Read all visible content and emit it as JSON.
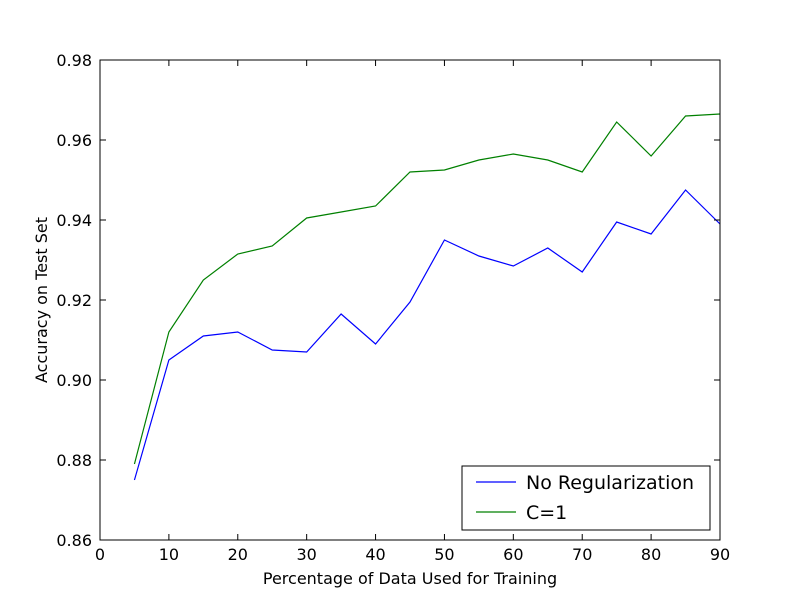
{
  "chart_data": {
    "type": "line",
    "xlabel": "Percentage of Data Used for Training",
    "ylabel": "Accuracy on Test Set",
    "xlim": [
      0,
      90
    ],
    "ylim": [
      0.86,
      0.98
    ],
    "xticks": [
      "0",
      "10",
      "20",
      "30",
      "40",
      "50",
      "60",
      "70",
      "80",
      "90"
    ],
    "yticks": [
      "0.86",
      "0.88",
      "0.90",
      "0.92",
      "0.94",
      "0.96",
      "0.98"
    ],
    "grid": false,
    "legend_position": "lower-right",
    "x": [
      5,
      10,
      15,
      20,
      25,
      30,
      35,
      40,
      45,
      50,
      55,
      60,
      65,
      70,
      75,
      80,
      85,
      90
    ],
    "series": [
      {
        "name": "No Regularization",
        "color": "#0000ff",
        "values": [
          0.875,
          0.905,
          0.911,
          0.912,
          0.9075,
          0.907,
          0.9165,
          0.909,
          0.9195,
          0.935,
          0.931,
          0.9285,
          0.933,
          0.927,
          0.9395,
          0.9365,
          0.9475,
          0.939
        ]
      },
      {
        "name": "C=1",
        "color": "#008000",
        "values": [
          0.879,
          0.912,
          0.925,
          0.9315,
          0.9335,
          0.9405,
          0.942,
          0.9435,
          0.952,
          0.9525,
          0.955,
          0.9565,
          0.955,
          0.952,
          0.9645,
          0.956,
          0.966,
          0.9665
        ]
      }
    ]
  }
}
